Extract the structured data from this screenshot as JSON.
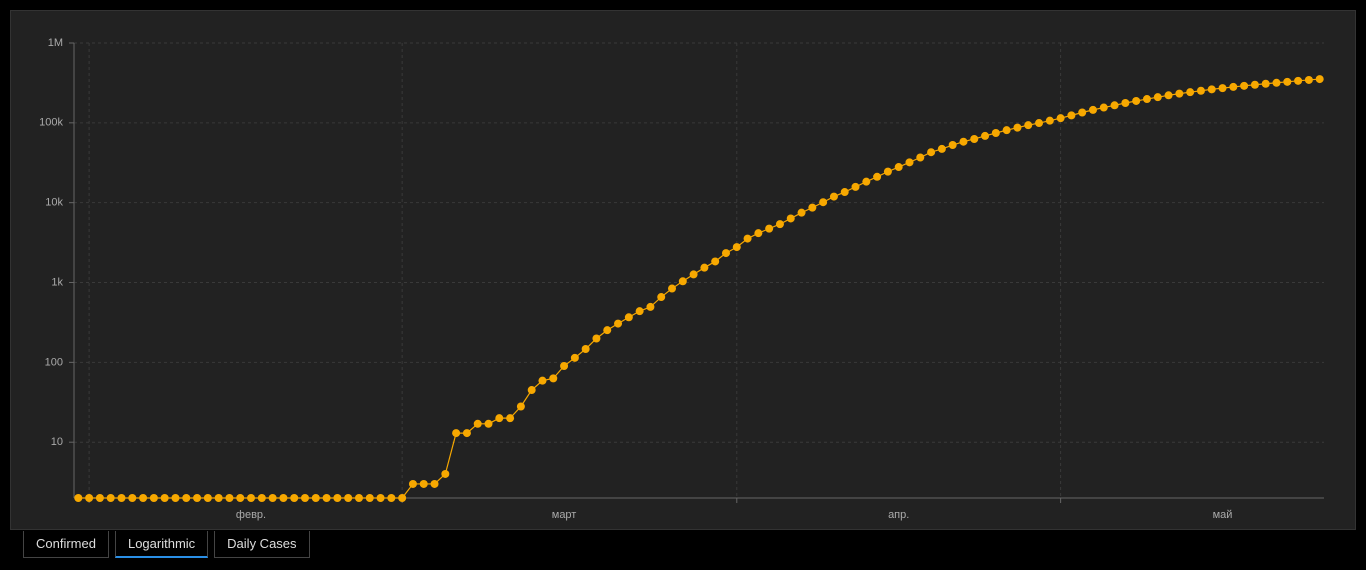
{
  "chart_data": {
    "type": "line",
    "log_scale": true,
    "grid": true,
    "color": "#f7a800",
    "x": [
      0,
      1,
      2,
      3,
      4,
      5,
      6,
      7,
      8,
      9,
      10,
      11,
      12,
      13,
      14,
      15,
      16,
      17,
      18,
      19,
      20,
      21,
      22,
      23,
      24,
      25,
      26,
      27,
      28,
      29,
      30,
      31,
      32,
      33,
      34,
      35,
      36,
      37,
      38,
      39,
      40,
      41,
      42,
      43,
      44,
      45,
      46,
      47,
      48,
      49,
      50,
      51,
      52,
      53,
      54,
      55,
      56,
      57,
      58,
      59,
      60,
      61,
      62,
      63,
      64,
      65,
      66,
      67,
      68,
      69,
      70,
      71,
      72,
      73,
      74,
      75,
      76,
      77,
      78,
      79,
      80,
      81,
      82,
      83,
      84,
      85,
      86,
      87,
      88,
      89,
      90,
      91,
      92,
      93,
      94,
      95,
      96,
      97,
      98,
      99,
      100,
      101,
      102,
      103,
      104,
      105,
      106,
      107,
      108,
      109,
      110,
      111,
      112,
      113,
      114,
      115
    ],
    "values": [
      2,
      2,
      2,
      2,
      2,
      2,
      2,
      2,
      2,
      2,
      2,
      2,
      2,
      2,
      2,
      2,
      2,
      2,
      2,
      2,
      2,
      2,
      2,
      2,
      2,
      2,
      2,
      2,
      2,
      2,
      2,
      3,
      3,
      3,
      4,
      13,
      13,
      17,
      17,
      20,
      20,
      28,
      45,
      59,
      63,
      90,
      114,
      147,
      199,
      253,
      306,
      367,
      438,
      495,
      658,
      840,
      1036,
      1264,
      1534,
      1836,
      2337,
      2777,
      3548,
      4149,
      4731,
      5389,
      6343,
      7497,
      8672,
      10131,
      11917,
      13584,
      15770,
      18328,
      21102,
      24490,
      27938,
      32008,
      36793,
      42853,
      47121,
      52763,
      57999,
      62773,
      68622,
      74588,
      80949,
      87147,
      93558,
      99399,
      106498,
      114431,
      124054,
      134686,
      145268,
      155370,
      165929,
      177160,
      187859,
      198676,
      209688,
      221344,
      232243,
      242271,
      252245,
      262843,
      272043,
      281752,
      290678,
      299941,
      308705,
      317554,
      326448,
      335882,
      344481,
      353427
    ],
    "xlim": [
      -0.4,
      115.4
    ],
    "xticks": [
      1,
      30,
      61,
      91
    ],
    "x_labels": [
      {
        "value": 16,
        "label": "февр."
      },
      {
        "value": 45,
        "label": "март"
      },
      {
        "value": 76,
        "label": "апр."
      },
      {
        "value": 106,
        "label": "май"
      }
    ],
    "ylim": [
      2,
      1000000
    ],
    "yticks": [
      10,
      100,
      {
        "value": 1000,
        "label": "1k"
      },
      {
        "value": 10000,
        "label": "10k"
      },
      {
        "value": 100000,
        "label": "100k"
      },
      {
        "value": 1000000,
        "label": "1M"
      }
    ]
  },
  "tabs": [
    {
      "label": "Confirmed",
      "active": false
    },
    {
      "label": "Logarithmic",
      "active": true
    },
    {
      "label": "Daily Cases",
      "active": false
    }
  ]
}
